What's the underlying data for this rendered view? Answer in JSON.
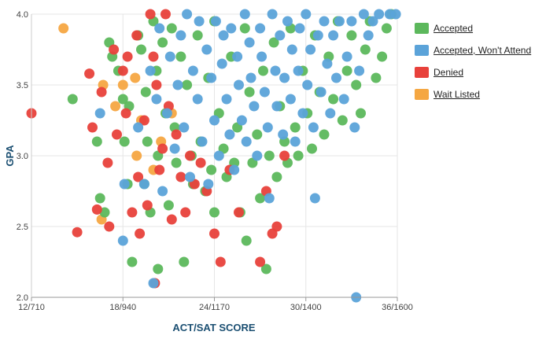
{
  "chart_data": {
    "type": "scatter",
    "xlabel": "ACT/SAT SCORE",
    "ylabel": "GPA",
    "xlim": [
      12,
      36
    ],
    "ylim": [
      2.0,
      4.0
    ],
    "x_ticks": [
      {
        "value": 12,
        "label": "12/710"
      },
      {
        "value": 18,
        "label": "18/940"
      },
      {
        "value": 24,
        "label": "24/1170"
      },
      {
        "value": 30,
        "label": "30/1400"
      },
      {
        "value": 36,
        "label": "36/1600"
      }
    ],
    "y_ticks": [
      {
        "value": 2.0,
        "label": "2.0"
      },
      {
        "value": 2.5,
        "label": "2.5"
      },
      {
        "value": 3.0,
        "label": "3.0"
      },
      {
        "value": 3.5,
        "label": "3.5"
      },
      {
        "value": 4.0,
        "label": "4.0"
      }
    ],
    "grid": true,
    "legend_position": "right",
    "series": [
      {
        "name": "Wait Listed",
        "color": "#f5a742",
        "points": [
          [
            14.1,
            3.9
          ],
          [
            16.7,
            3.5
          ],
          [
            16.6,
            2.55
          ],
          [
            17.5,
            3.35
          ],
          [
            18.0,
            3.5
          ],
          [
            18.8,
            3.55
          ],
          [
            18.9,
            3.0
          ],
          [
            19.2,
            3.25
          ],
          [
            20.0,
            2.9
          ],
          [
            20.5,
            3.1
          ],
          [
            21.2,
            3.3
          ]
        ]
      },
      {
        "name": "Accepted",
        "color": "#5cb85c",
        "points": [
          [
            14.7,
            3.4
          ],
          [
            16.3,
            3.1
          ],
          [
            16.5,
            2.7
          ],
          [
            16.8,
            2.6
          ],
          [
            17.1,
            3.8
          ],
          [
            17.3,
            3.7
          ],
          [
            17.7,
            3.6
          ],
          [
            18.0,
            3.4
          ],
          [
            18.1,
            3.1
          ],
          [
            18.3,
            2.8
          ],
          [
            18.4,
            3.35
          ],
          [
            18.6,
            2.25
          ],
          [
            19.0,
            3.85
          ],
          [
            19.2,
            3.75
          ],
          [
            19.4,
            2.8
          ],
          [
            19.5,
            3.45
          ],
          [
            19.6,
            3.1
          ],
          [
            19.8,
            2.6
          ],
          [
            20.0,
            3.95
          ],
          [
            20.2,
            3.6
          ],
          [
            20.3,
            3.0
          ],
          [
            20.3,
            2.2
          ],
          [
            20.6,
            3.8
          ],
          [
            20.8,
            3.3
          ],
          [
            21.0,
            2.65
          ],
          [
            21.2,
            3.9
          ],
          [
            21.4,
            3.2
          ],
          [
            21.5,
            2.95
          ],
          [
            21.8,
            3.7
          ],
          [
            22.0,
            2.25
          ],
          [
            22.2,
            3.5
          ],
          [
            22.5,
            3.0
          ],
          [
            22.6,
            2.8
          ],
          [
            22.9,
            3.85
          ],
          [
            23.1,
            3.1
          ],
          [
            23.4,
            2.75
          ],
          [
            23.6,
            3.55
          ],
          [
            23.8,
            2.9
          ],
          [
            24.0,
            3.95
          ],
          [
            24.0,
            2.6
          ],
          [
            24.3,
            3.3
          ],
          [
            24.6,
            3.05
          ],
          [
            24.8,
            2.85
          ],
          [
            25.1,
            3.7
          ],
          [
            25.3,
            2.95
          ],
          [
            25.5,
            3.2
          ],
          [
            25.7,
            2.6
          ],
          [
            26.0,
            3.9
          ],
          [
            26.1,
            2.4
          ],
          [
            26.3,
            3.45
          ],
          [
            26.5,
            2.95
          ],
          [
            26.8,
            3.15
          ],
          [
            27.0,
            2.7
          ],
          [
            27.2,
            3.6
          ],
          [
            27.4,
            2.2
          ],
          [
            27.6,
            3.0
          ],
          [
            27.9,
            3.8
          ],
          [
            28.1,
            2.85
          ],
          [
            28.3,
            3.35
          ],
          [
            28.6,
            3.1
          ],
          [
            28.8,
            2.95
          ],
          [
            29.0,
            3.9
          ],
          [
            29.3,
            3.2
          ],
          [
            29.5,
            3.0
          ],
          [
            29.8,
            3.6
          ],
          [
            30.1,
            3.3
          ],
          [
            30.4,
            3.05
          ],
          [
            30.6,
            3.85
          ],
          [
            30.9,
            3.45
          ],
          [
            31.2,
            3.15
          ],
          [
            31.5,
            3.7
          ],
          [
            31.8,
            3.4
          ],
          [
            32.1,
            3.95
          ],
          [
            32.4,
            3.25
          ],
          [
            32.7,
            3.6
          ],
          [
            33.0,
            3.85
          ],
          [
            33.3,
            3.5
          ],
          [
            33.6,
            3.3
          ],
          [
            33.9,
            3.75
          ],
          [
            34.2,
            3.95
          ],
          [
            34.6,
            3.55
          ],
          [
            35.0,
            3.7
          ],
          [
            35.3,
            3.9
          ],
          [
            35.6,
            4.0
          ]
        ]
      },
      {
        "name": "Denied",
        "color": "#e8413b",
        "points": [
          [
            12.0,
            3.3
          ],
          [
            15.0,
            2.46
          ],
          [
            15.8,
            3.58
          ],
          [
            16.0,
            3.2
          ],
          [
            16.3,
            2.62
          ],
          [
            16.6,
            3.45
          ],
          [
            17.0,
            2.95
          ],
          [
            17.1,
            2.5
          ],
          [
            17.4,
            3.75
          ],
          [
            17.6,
            3.15
          ],
          [
            18.0,
            3.6
          ],
          [
            18.2,
            3.3
          ],
          [
            18.3,
            3.7
          ],
          [
            18.6,
            2.6
          ],
          [
            18.9,
            3.85
          ],
          [
            19.0,
            2.85
          ],
          [
            19.1,
            2.45
          ],
          [
            19.4,
            3.25
          ],
          [
            19.6,
            2.65
          ],
          [
            19.8,
            4.0
          ],
          [
            20.0,
            3.7
          ],
          [
            20.1,
            2.1
          ],
          [
            20.2,
            3.5
          ],
          [
            20.4,
            2.9
          ],
          [
            20.6,
            3.05
          ],
          [
            20.8,
            4.0
          ],
          [
            21.0,
            3.35
          ],
          [
            21.2,
            2.55
          ],
          [
            21.5,
            3.15
          ],
          [
            21.8,
            2.85
          ],
          [
            22.1,
            2.6
          ],
          [
            22.4,
            3.0
          ],
          [
            22.7,
            2.8
          ],
          [
            23.1,
            2.95
          ],
          [
            23.5,
            2.75
          ],
          [
            24.0,
            2.45
          ],
          [
            24.4,
            2.25
          ],
          [
            25.0,
            2.9
          ],
          [
            25.6,
            2.6
          ],
          [
            27.0,
            2.25
          ],
          [
            27.4,
            2.75
          ],
          [
            27.8,
            2.45
          ],
          [
            28.1,
            2.5
          ],
          [
            28.6,
            3.0
          ]
        ]
      },
      {
        "name": "Accepted, Won't Attend",
        "color": "#5ba3d9",
        "points": [
          [
            16.5,
            3.3
          ],
          [
            18.0,
            2.4
          ],
          [
            18.1,
            2.8
          ],
          [
            19.0,
            3.2
          ],
          [
            19.4,
            2.8
          ],
          [
            19.8,
            3.6
          ],
          [
            20.0,
            2.1
          ],
          [
            20.2,
            3.4
          ],
          [
            20.4,
            3.9
          ],
          [
            20.6,
            2.75
          ],
          [
            20.9,
            3.3
          ],
          [
            21.1,
            3.7
          ],
          [
            21.4,
            3.05
          ],
          [
            21.6,
            3.5
          ],
          [
            21.8,
            3.85
          ],
          [
            22.0,
            3.2
          ],
          [
            22.2,
            4.0
          ],
          [
            22.4,
            2.85
          ],
          [
            22.6,
            3.6
          ],
          [
            22.9,
            3.4
          ],
          [
            23.0,
            3.95
          ],
          [
            23.2,
            3.1
          ],
          [
            23.5,
            3.75
          ],
          [
            23.6,
            2.8
          ],
          [
            23.8,
            3.55
          ],
          [
            24.0,
            3.25
          ],
          [
            24.1,
            3.95
          ],
          [
            24.3,
            3.0
          ],
          [
            24.5,
            3.65
          ],
          [
            24.6,
            3.85
          ],
          [
            24.8,
            3.4
          ],
          [
            25.0,
            3.15
          ],
          [
            25.1,
            3.9
          ],
          [
            25.3,
            2.9
          ],
          [
            25.5,
            3.7
          ],
          [
            25.6,
            3.5
          ],
          [
            25.8,
            3.25
          ],
          [
            26.0,
            4.0
          ],
          [
            26.1,
            3.1
          ],
          [
            26.3,
            3.8
          ],
          [
            26.4,
            3.55
          ],
          [
            26.6,
            3.35
          ],
          [
            26.8,
            3.0
          ],
          [
            27.0,
            3.9
          ],
          [
            27.1,
            3.7
          ],
          [
            27.3,
            3.45
          ],
          [
            27.5,
            3.2
          ],
          [
            27.6,
            2.7
          ],
          [
            27.8,
            4.0
          ],
          [
            28.0,
            3.6
          ],
          [
            28.1,
            3.35
          ],
          [
            28.3,
            3.85
          ],
          [
            28.5,
            3.15
          ],
          [
            28.6,
            3.55
          ],
          [
            28.8,
            3.95
          ],
          [
            29.0,
            3.4
          ],
          [
            29.1,
            3.75
          ],
          [
            29.3,
            3.1
          ],
          [
            29.5,
            3.6
          ],
          [
            29.6,
            3.9
          ],
          [
            29.8,
            3.3
          ],
          [
            30.0,
            4.0
          ],
          [
            30.1,
            3.5
          ],
          [
            30.3,
            3.75
          ],
          [
            30.5,
            3.2
          ],
          [
            30.6,
            2.7
          ],
          [
            30.8,
            3.85
          ],
          [
            31.0,
            3.45
          ],
          [
            31.2,
            3.95
          ],
          [
            31.4,
            3.65
          ],
          [
            31.6,
            3.3
          ],
          [
            31.8,
            3.85
          ],
          [
            32.0,
            3.55
          ],
          [
            32.2,
            3.95
          ],
          [
            32.5,
            3.4
          ],
          [
            32.7,
            3.7
          ],
          [
            33.0,
            3.95
          ],
          [
            33.2,
            3.2
          ],
          [
            33.3,
            2.0
          ],
          [
            33.5,
            3.6
          ],
          [
            33.8,
            4.0
          ],
          [
            34.1,
            3.85
          ],
          [
            34.4,
            3.95
          ],
          [
            34.8,
            4.0
          ],
          [
            35.5,
            4.0
          ],
          [
            35.9,
            4.0
          ]
        ]
      }
    ],
    "legend_items": [
      {
        "label": "Accepted",
        "color": "#5cb85c"
      },
      {
        "label": "Accepted, Won't Attend",
        "color": "#5ba3d9"
      },
      {
        "label": "Denied",
        "color": "#e8413b"
      },
      {
        "label": "Wait Listed",
        "color": "#f5a742"
      }
    ]
  }
}
